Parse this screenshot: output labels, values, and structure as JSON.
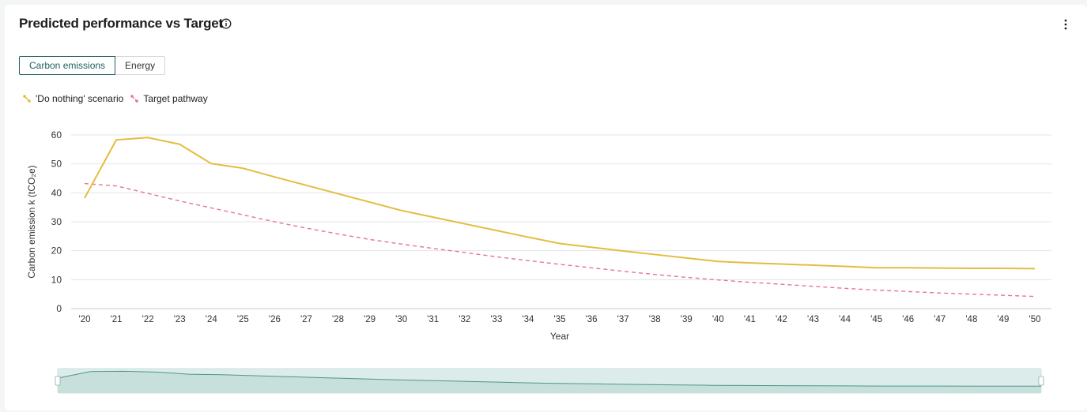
{
  "card": {
    "title": "Predicted performance vs Target",
    "tabs": [
      {
        "label": "Carbon emissions",
        "active": true
      },
      {
        "label": "Energy",
        "active": false
      }
    ]
  },
  "colors": {
    "accent": "#1d5f63",
    "do_nothing": "#e3bd3f",
    "target": "#e8729a",
    "grid": "#e3e3ee",
    "navigator_fill": "#dbecea",
    "navigator_line": "#4f958b"
  },
  "chart_data": {
    "type": "line",
    "xlabel": "Year",
    "ylabel": "Carbon emission k (tCO₂e)",
    "ylim": [
      0,
      60
    ],
    "yticks": [
      0,
      10,
      20,
      30,
      40,
      50,
      60
    ],
    "grid": true,
    "legend_position": "top-left",
    "categories": [
      "'20",
      "'21",
      "'22",
      "'23",
      "'24",
      "'25",
      "'26",
      "'27",
      "'28",
      "'29",
      "'30",
      "'31",
      "'32",
      "'33",
      "'34",
      "'35",
      "'36",
      "'37",
      "'38",
      "'39",
      "'40",
      "'41",
      "'42",
      "'43",
      "'44",
      "'45",
      "'46",
      "'47",
      "'48",
      "'49",
      "'50"
    ],
    "series": [
      {
        "name": "'Do nothing' scenario",
        "style": "solid",
        "values": [
          38.2,
          58.3,
          59.1,
          56.8,
          50.1,
          48.5,
          45.5,
          42.6,
          39.7,
          36.8,
          33.9,
          31.6,
          29.3,
          27.0,
          24.7,
          22.5,
          21.2,
          19.9,
          18.7,
          17.5,
          16.3,
          15.8,
          15.4,
          15.0,
          14.6,
          14.1,
          14.1,
          14.0,
          13.9,
          13.9,
          13.8
        ]
      },
      {
        "name": "Target pathway",
        "style": "dashed",
        "values": [
          43.2,
          42.4,
          39.8,
          37.2,
          34.8,
          32.4,
          30.0,
          27.8,
          25.8,
          23.9,
          22.3,
          20.8,
          19.4,
          17.9,
          16.6,
          15.3,
          14.1,
          12.9,
          11.8,
          10.8,
          9.9,
          9.1,
          8.4,
          7.7,
          7.0,
          6.4,
          5.9,
          5.4,
          5.0,
          4.6,
          4.2
        ]
      }
    ]
  }
}
